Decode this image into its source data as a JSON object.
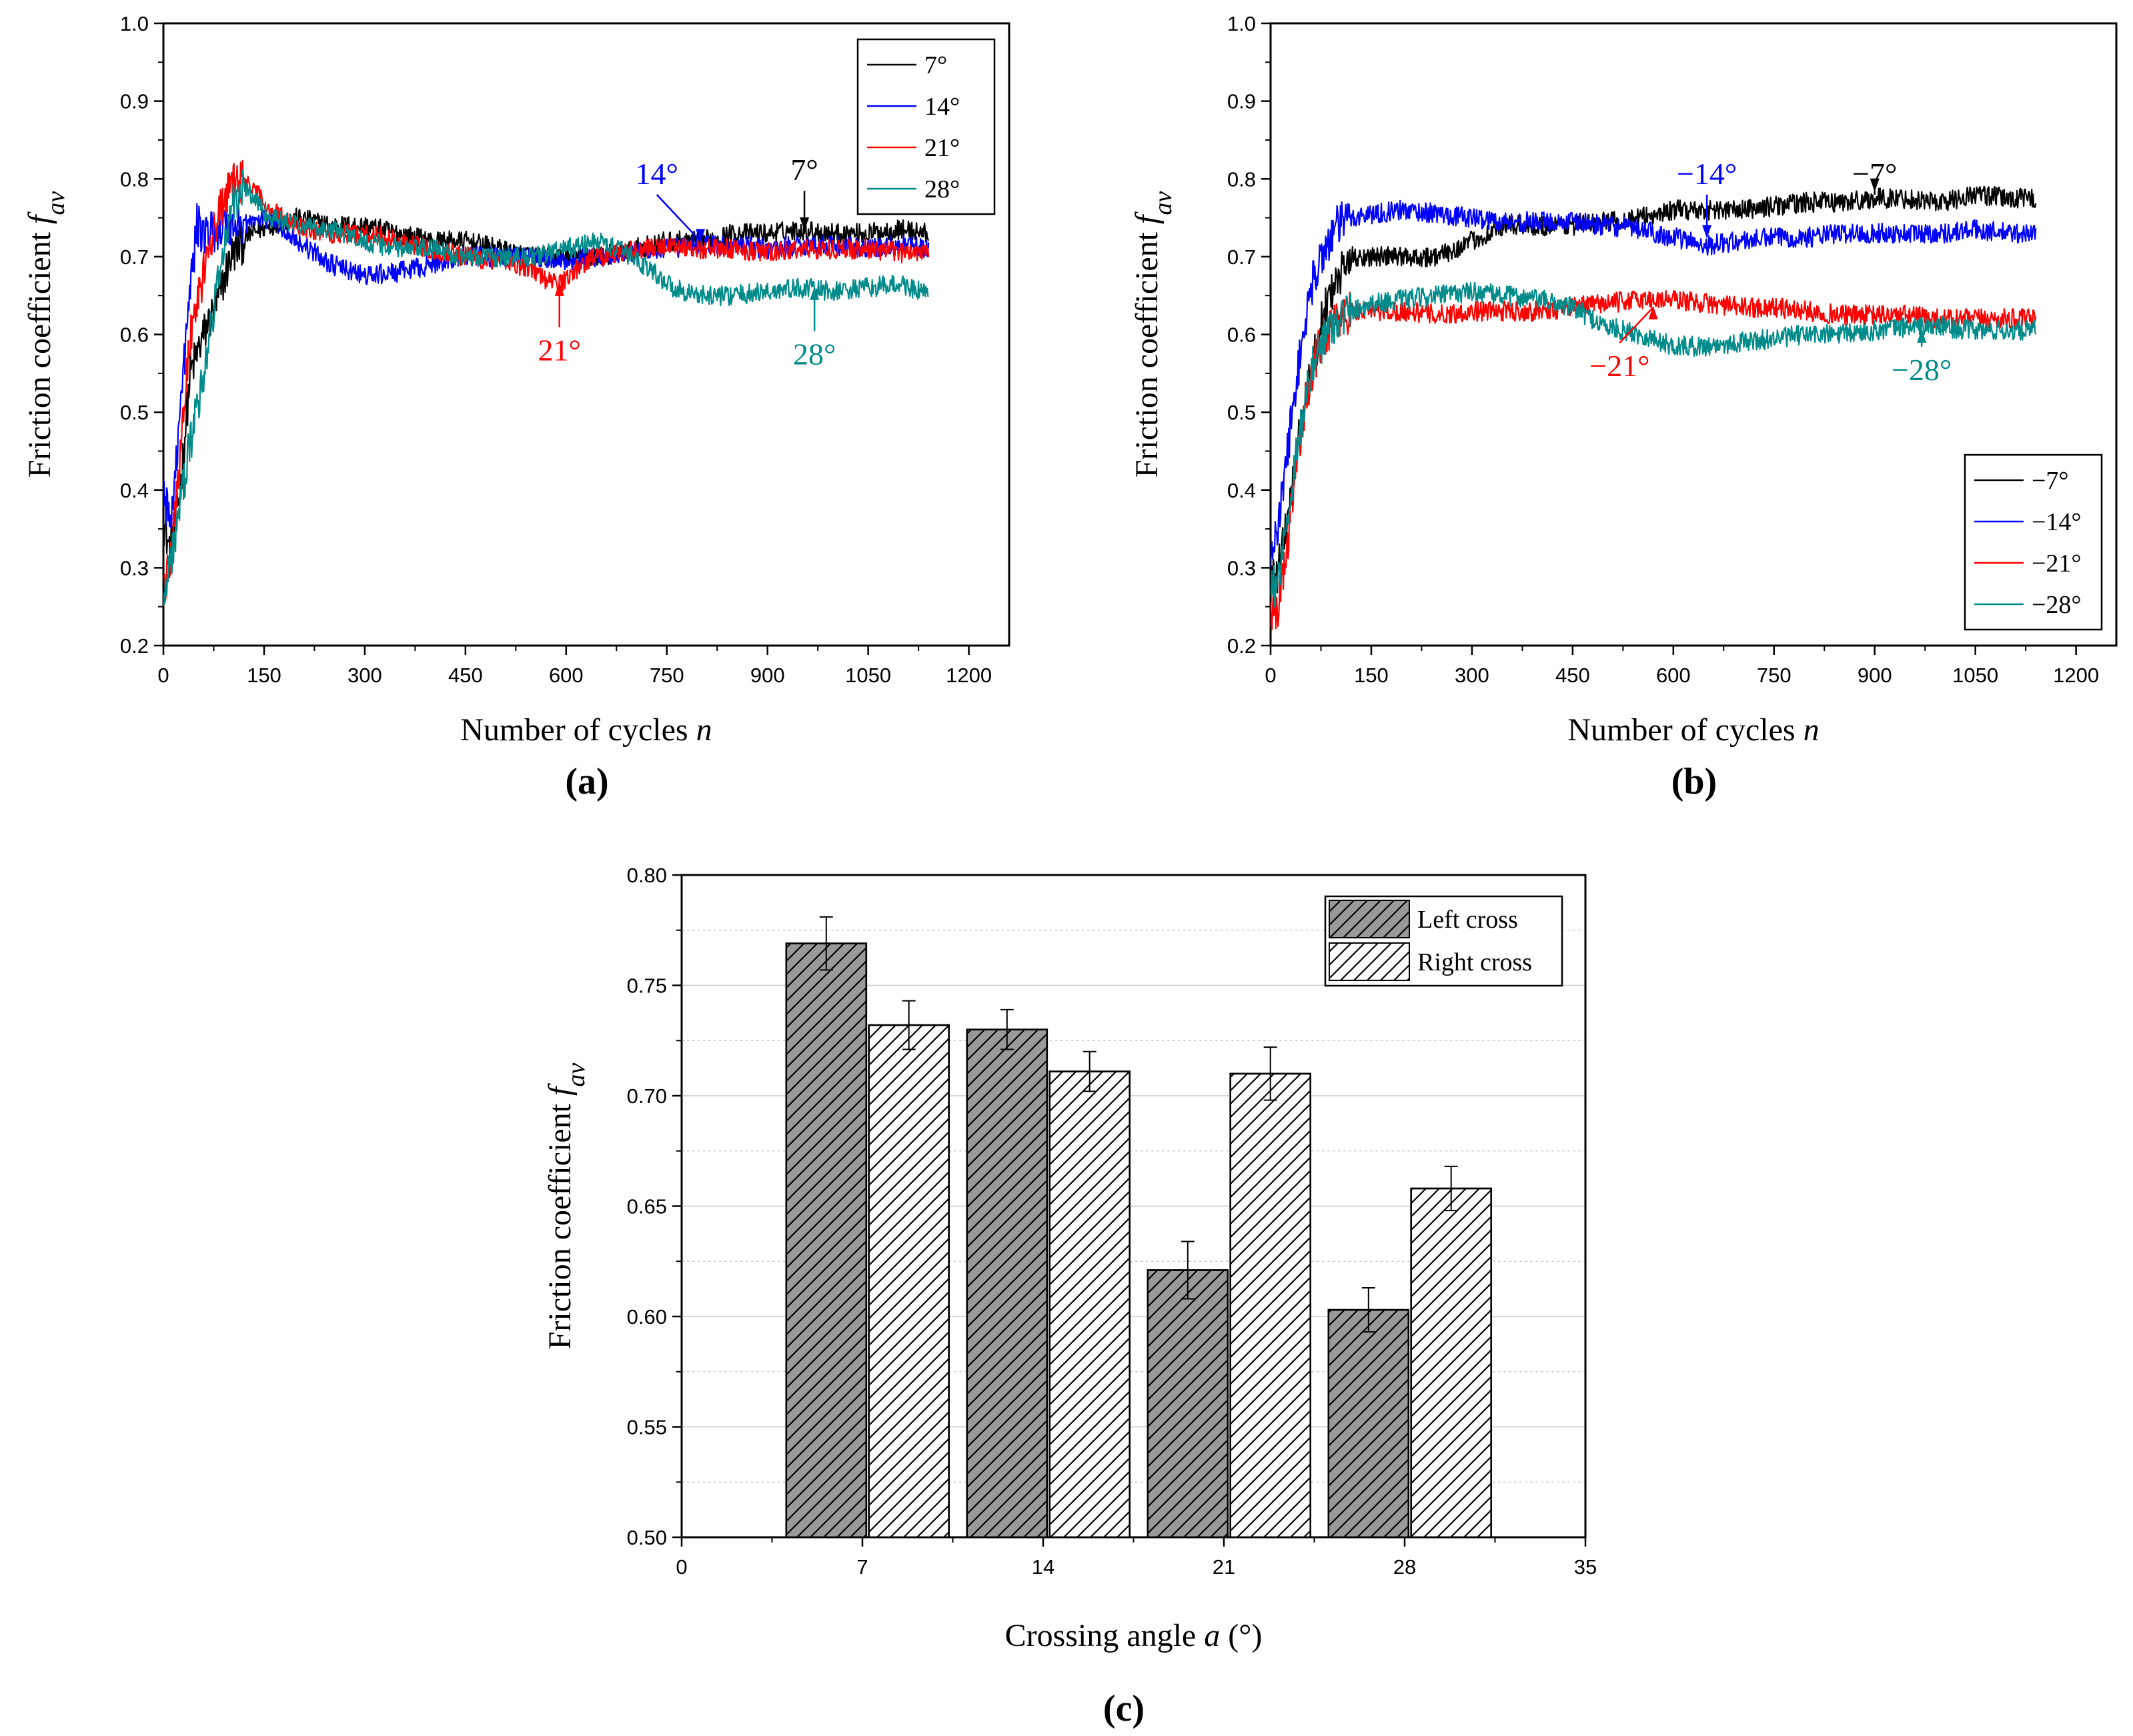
{
  "chart_data": [
    {
      "type": "line",
      "panel_label": "(a)",
      "xlabel": "Number of cycles",
      "xlabel_var": "n",
      "ylabel": "Friction coefficient",
      "ylabel_var": "f",
      "ylabel_sub": "av",
      "xlim": [
        0,
        1260
      ],
      "ylim": [
        0.2,
        1.0
      ],
      "xticks": [
        "0",
        "150",
        "300",
        "450",
        "600",
        "750",
        "900",
        "1050",
        "1200"
      ],
      "yticks": [
        "0.2",
        "0.3",
        "0.4",
        "0.5",
        "0.6",
        "0.7",
        "0.8",
        "0.9",
        "1.0"
      ],
      "legend_position": "top-right",
      "series": [
        {
          "name": "7°",
          "color": "#000000",
          "x": [
            0,
            10,
            25,
            40,
            60,
            80,
            100,
            130,
            160,
            200,
            250,
            300,
            350,
            400,
            450,
            500,
            550,
            600,
            650,
            700,
            750,
            800,
            850,
            900,
            950,
            1000,
            1050,
            1100,
            1140
          ],
          "y": [
            0.36,
            0.32,
            0.4,
            0.55,
            0.6,
            0.64,
            0.7,
            0.73,
            0.74,
            0.75,
            0.74,
            0.74,
            0.73,
            0.72,
            0.72,
            0.71,
            0.7,
            0.7,
            0.7,
            0.71,
            0.72,
            0.72,
            0.73,
            0.73,
            0.735,
            0.73,
            0.73,
            0.735,
            0.73
          ]
        },
        {
          "name": "14°",
          "color": "#0000ff",
          "x": [
            0,
            10,
            25,
            40,
            50,
            60,
            80,
            100,
            130,
            160,
            200,
            250,
            300,
            350,
            400,
            450,
            500,
            550,
            600,
            650,
            700,
            750,
            800,
            850,
            900,
            950,
            1000,
            1050,
            1100,
            1140
          ],
          "y": [
            0.4,
            0.35,
            0.5,
            0.66,
            0.74,
            0.73,
            0.735,
            0.74,
            0.745,
            0.75,
            0.72,
            0.69,
            0.675,
            0.68,
            0.69,
            0.7,
            0.7,
            0.7,
            0.695,
            0.7,
            0.705,
            0.71,
            0.715,
            0.715,
            0.71,
            0.715,
            0.715,
            0.71,
            0.715,
            0.71
          ]
        },
        {
          "name": "21°",
          "color": "#ff0000",
          "x": [
            0,
            10,
            25,
            40,
            60,
            80,
            100,
            120,
            140,
            160,
            200,
            250,
            300,
            350,
            400,
            450,
            500,
            550,
            570,
            590,
            610,
            640,
            680,
            720,
            760,
            800,
            850,
            900,
            950,
            1000,
            1050,
            1100,
            1140
          ],
          "y": [
            0.28,
            0.3,
            0.45,
            0.6,
            0.68,
            0.75,
            0.79,
            0.8,
            0.78,
            0.76,
            0.74,
            0.73,
            0.73,
            0.72,
            0.71,
            0.7,
            0.695,
            0.685,
            0.67,
            0.665,
            0.68,
            0.7,
            0.705,
            0.71,
            0.715,
            0.71,
            0.71,
            0.705,
            0.71,
            0.71,
            0.71,
            0.705,
            0.71
          ]
        },
        {
          "name": "28°",
          "color": "#008b8b",
          "x": [
            0,
            10,
            25,
            40,
            60,
            80,
            100,
            120,
            140,
            160,
            200,
            250,
            300,
            350,
            400,
            450,
            500,
            550,
            600,
            650,
            700,
            730,
            760,
            800,
            850,
            900,
            950,
            1000,
            1050,
            1100,
            1140
          ],
          "y": [
            0.27,
            0.3,
            0.38,
            0.46,
            0.55,
            0.66,
            0.76,
            0.79,
            0.77,
            0.75,
            0.74,
            0.735,
            0.72,
            0.71,
            0.71,
            0.7,
            0.7,
            0.7,
            0.71,
            0.72,
            0.7,
            0.68,
            0.66,
            0.65,
            0.65,
            0.655,
            0.66,
            0.655,
            0.66,
            0.665,
            0.65
          ]
        }
      ],
      "annotations": [
        {
          "text": "14°",
          "color": "#0000ff",
          "x": 800,
          "y": 0.715,
          "label_x": 735,
          "label_y": 0.79
        },
        {
          "text": "7°",
          "color": "#000000",
          "x": 955,
          "y": 0.73,
          "label_x": 955,
          "label_y": 0.795
        },
        {
          "text": "21°",
          "color": "#ff0000",
          "x": 590,
          "y": 0.67,
          "label_x": 590,
          "label_y": 0.575
        },
        {
          "text": "28°",
          "color": "#008b8b",
          "x": 970,
          "y": 0.665,
          "label_x": 970,
          "label_y": 0.57
        }
      ]
    },
    {
      "type": "line",
      "panel_label": "(b)",
      "xlabel": "Number of cycles",
      "xlabel_var": "n",
      "ylabel": "Friction coefficient",
      "ylabel_var": "f",
      "ylabel_sub": "av",
      "xlim": [
        0,
        1260
      ],
      "ylim": [
        0.2,
        1.0
      ],
      "xticks": [
        "0",
        "150",
        "300",
        "450",
        "600",
        "750",
        "900",
        "1050",
        "1200"
      ],
      "yticks": [
        "0.2",
        "0.3",
        "0.4",
        "0.5",
        "0.6",
        "0.7",
        "0.8",
        "0.9",
        "1.0"
      ],
      "legend_position": "bottom-right",
      "series": [
        {
          "name": "−7°",
          "color": "#000000",
          "x": [
            0,
            10,
            25,
            40,
            60,
            80,
            100,
            120,
            150,
            200,
            250,
            300,
            350,
            400,
            450,
            500,
            550,
            600,
            650,
            700,
            750,
            800,
            850,
            900,
            950,
            1000,
            1050,
            1100,
            1140
          ],
          "y": [
            0.28,
            0.29,
            0.36,
            0.46,
            0.55,
            0.63,
            0.67,
            0.7,
            0.7,
            0.7,
            0.7,
            0.72,
            0.74,
            0.74,
            0.74,
            0.745,
            0.75,
            0.76,
            0.76,
            0.76,
            0.765,
            0.77,
            0.77,
            0.775,
            0.775,
            0.77,
            0.78,
            0.775,
            0.775
          ]
        },
        {
          "name": "−14°",
          "color": "#0000ff",
          "x": [
            0,
            10,
            25,
            40,
            60,
            80,
            100,
            120,
            150,
            200,
            250,
            300,
            350,
            400,
            450,
            500,
            550,
            600,
            650,
            700,
            750,
            800,
            850,
            900,
            950,
            1000,
            1050,
            1100,
            1140
          ],
          "y": [
            0.32,
            0.34,
            0.45,
            0.55,
            0.66,
            0.71,
            0.74,
            0.75,
            0.755,
            0.76,
            0.755,
            0.75,
            0.745,
            0.745,
            0.745,
            0.74,
            0.735,
            0.725,
            0.715,
            0.72,
            0.725,
            0.725,
            0.73,
            0.73,
            0.73,
            0.73,
            0.735,
            0.73,
            0.73
          ]
        },
        {
          "name": "−21°",
          "color": "#ff0000",
          "x": [
            0,
            10,
            25,
            40,
            60,
            80,
            100,
            120,
            150,
            200,
            250,
            300,
            350,
            400,
            450,
            500,
            550,
            600,
            650,
            700,
            750,
            800,
            850,
            900,
            950,
            1000,
            1050,
            1100,
            1140
          ],
          "y": [
            0.25,
            0.24,
            0.33,
            0.45,
            0.55,
            0.6,
            0.62,
            0.63,
            0.63,
            0.63,
            0.625,
            0.63,
            0.63,
            0.63,
            0.635,
            0.64,
            0.645,
            0.645,
            0.64,
            0.635,
            0.635,
            0.63,
            0.625,
            0.625,
            0.625,
            0.62,
            0.62,
            0.62,
            0.62
          ]
        },
        {
          "name": "−28°",
          "color": "#008b8b",
          "x": [
            0,
            10,
            25,
            40,
            60,
            80,
            100,
            120,
            150,
            200,
            250,
            300,
            350,
            400,
            450,
            500,
            550,
            600,
            650,
            700,
            750,
            800,
            850,
            900,
            950,
            1000,
            1050,
            1100,
            1140
          ],
          "y": [
            0.27,
            0.28,
            0.36,
            0.46,
            0.55,
            0.6,
            0.62,
            0.63,
            0.64,
            0.645,
            0.65,
            0.655,
            0.65,
            0.645,
            0.635,
            0.61,
            0.6,
            0.585,
            0.585,
            0.59,
            0.595,
            0.6,
            0.6,
            0.605,
            0.61,
            0.61,
            0.605,
            0.605,
            0.605
          ]
        }
      ],
      "annotations": [
        {
          "text": "−14°",
          "color": "#0000ff",
          "x": 650,
          "y": 0.72,
          "label_x": 650,
          "label_y": 0.79
        },
        {
          "text": "−7°",
          "color": "#000000",
          "x": 900,
          "y": 0.78,
          "label_x": 900,
          "label_y": 0.79
        },
        {
          "text": "−21°",
          "color": "#ff0000",
          "x": 570,
          "y": 0.64,
          "label_x": 520,
          "label_y": 0.555
        },
        {
          "text": "−28°",
          "color": "#008b8b",
          "x": 970,
          "y": 0.61,
          "label_x": 970,
          "label_y": 0.55
        }
      ]
    },
    {
      "type": "bar",
      "panel_label": "(c)",
      "xlabel": "Crossing angle",
      "xlabel_var": "a",
      "xlabel_unit": "(°)",
      "ylabel": "Friction coefficient",
      "ylabel_var": "f",
      "ylabel_sub": "av",
      "xlim": [
        0,
        35
      ],
      "ylim": [
        0.5,
        0.8
      ],
      "xticks": [
        "0",
        "7",
        "14",
        "21",
        "28",
        "35"
      ],
      "yticks": [
        "0.50",
        "0.55",
        "0.60",
        "0.65",
        "0.70",
        "0.75",
        "0.80"
      ],
      "grid": true,
      "legend_position": "top-right",
      "categories": [
        "7",
        "14",
        "21",
        "28"
      ],
      "series": [
        {
          "name": "Left cross",
          "x": [
            5.6,
            12.6,
            19.6,
            26.6
          ],
          "values": [
            0.769,
            0.73,
            0.621,
            0.603
          ],
          "errors": [
            0.012,
            0.009,
            0.013,
            0.01
          ],
          "fill": "#999999"
        },
        {
          "name": "Right cross",
          "x": [
            8.8,
            15.8,
            22.8,
            29.8
          ],
          "values": [
            0.732,
            0.711,
            0.71,
            0.658
          ],
          "errors": [
            0.011,
            0.009,
            0.012,
            0.01
          ],
          "fill": "#ffffff"
        }
      ]
    }
  ]
}
